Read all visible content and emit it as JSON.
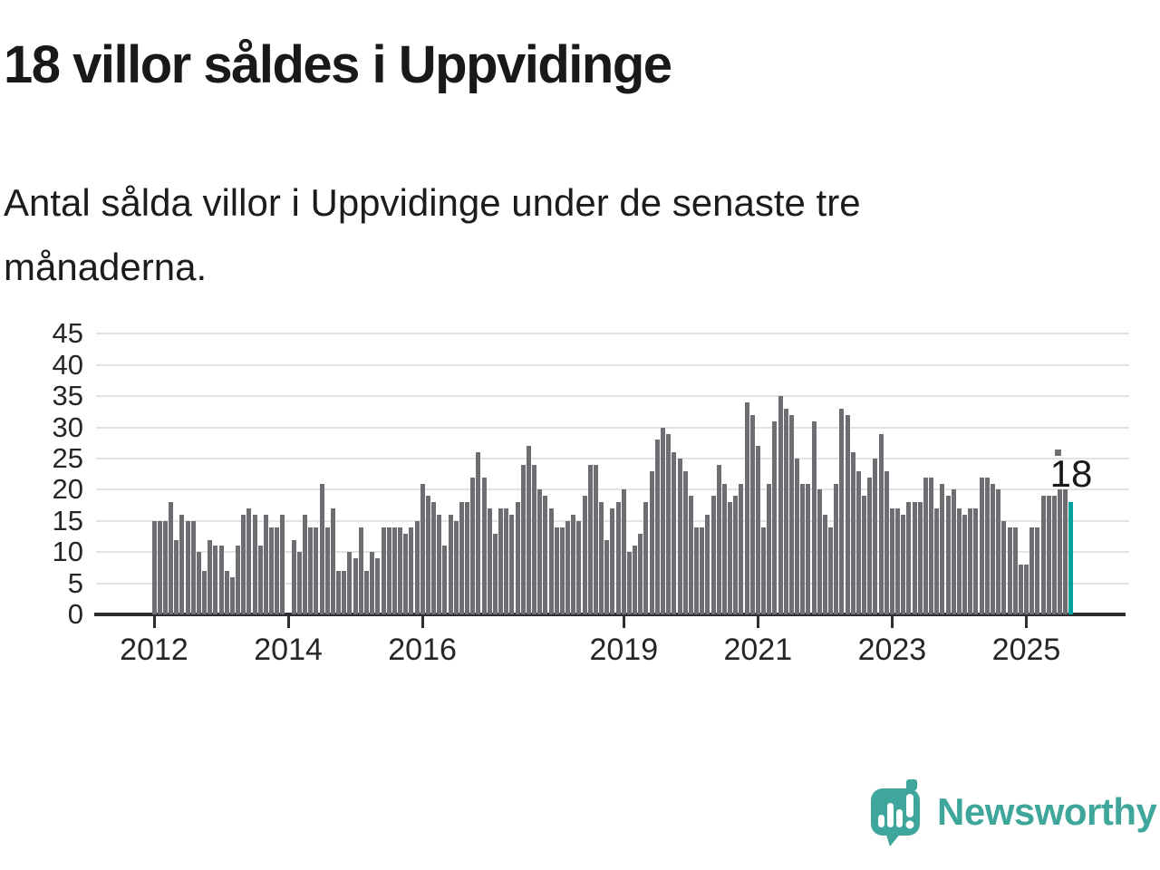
{
  "header": {
    "title": "18 villor såldes i Uppvidinge",
    "subtitle": "Antal sålda villor i Uppvidinge under de senaste tre månaderna."
  },
  "chart_data": {
    "type": "bar",
    "title": "18 villor såldes i Uppvidinge",
    "xlabel": "",
    "ylabel": "",
    "ylim": [
      0,
      45
    ],
    "grid": "horizontal",
    "y_ticks": [
      0,
      5,
      10,
      15,
      20,
      25,
      30,
      35,
      40,
      45
    ],
    "x_tick_labels": [
      "2012",
      "2014",
      "2016",
      "2019",
      "2021",
      "2023",
      "2025"
    ],
    "x_ticks": [
      {
        "label": "2012",
        "month_index": 0
      },
      {
        "label": "2014",
        "month_index": 24
      },
      {
        "label": "2016",
        "month_index": 48
      },
      {
        "label": "2019",
        "month_index": 84
      },
      {
        "label": "2021",
        "month_index": 108
      },
      {
        "label": "2023",
        "month_index": 132
      },
      {
        "label": "2025",
        "month_index": 156
      }
    ],
    "x_start": "2012-01",
    "x_end": "2025-09",
    "bar_color": "#6e6e72",
    "series": [
      {
        "name": "Antal sålda villor (rullande tre månader)",
        "values": [
          15,
          15,
          15,
          18,
          12,
          16,
          15,
          15,
          10,
          7,
          12,
          11,
          11,
          7,
          6,
          11,
          16,
          17,
          16,
          11,
          16,
          14,
          14,
          16,
          0,
          12,
          10,
          16,
          14,
          14,
          21,
          14,
          17,
          7,
          7,
          10,
          9,
          14,
          7,
          10,
          9,
          14,
          14,
          14,
          14,
          13,
          14,
          15,
          21,
          19,
          18,
          16,
          11,
          16,
          15,
          18,
          18,
          22,
          26,
          22,
          17,
          13,
          17,
          17,
          16,
          18,
          24,
          27,
          24,
          20,
          19,
          17,
          14,
          14,
          15,
          16,
          15,
          19,
          24,
          24,
          18,
          12,
          17,
          18,
          20,
          10,
          11,
          13,
          18,
          23,
          28,
          30,
          29,
          26,
          25,
          23,
          19,
          14,
          14,
          16,
          19,
          24,
          21,
          18,
          19,
          21,
          34,
          32,
          27,
          14,
          21,
          31,
          35,
          33,
          32,
          25,
          21,
          21,
          31,
          20,
          16,
          14,
          21,
          33,
          32,
          26,
          23,
          19,
          22,
          25,
          29,
          23,
          17,
          17,
          16,
          18,
          18,
          18,
          22,
          22,
          17,
          21,
          19,
          20,
          17,
          16,
          17,
          17,
          22,
          22,
          21,
          20,
          15,
          14,
          14,
          8,
          8,
          14,
          14,
          19,
          19,
          19,
          20,
          20,
          18
        ]
      }
    ],
    "highlight": {
      "index": 164,
      "value": 18,
      "label": "18",
      "color": "#00a19b"
    }
  },
  "annotation": {
    "label": "18"
  },
  "footer": {
    "brand": "Newsworthy"
  },
  "colors": {
    "bar_gray": "#6e6e72",
    "bar_highlight_teal": "#00a19b",
    "logo_teal": "#3fa69b",
    "gridline": "#e3e3e3",
    "axis_dark": "#2e2e32",
    "text_dark": "#191919"
  }
}
